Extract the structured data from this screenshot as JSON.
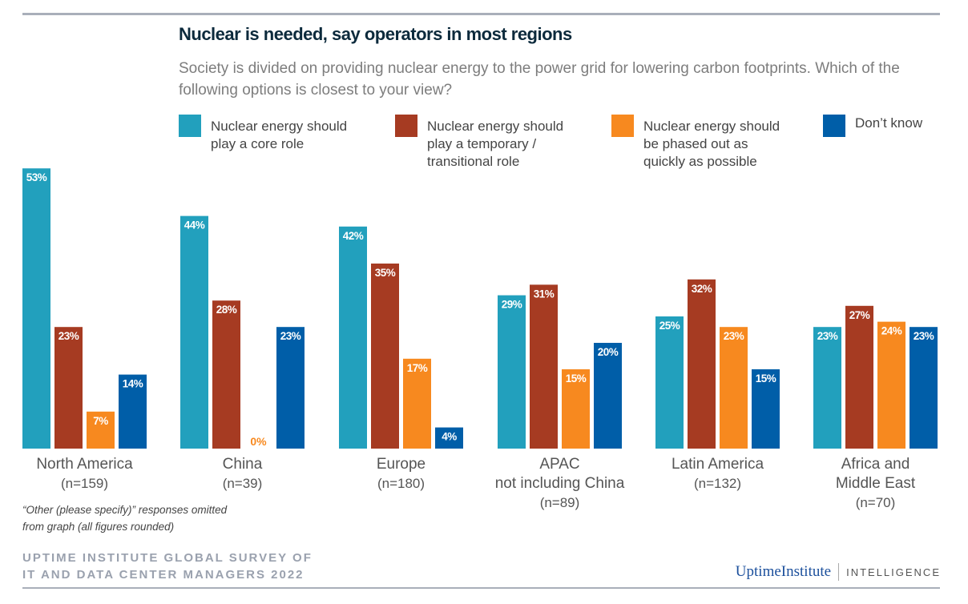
{
  "chart_data": {
    "type": "bar",
    "title": "Nuclear is needed, say operators in most regions",
    "subtitle": "Society is divided on providing nuclear energy to the power grid for lowering carbon footprints. Which of the following options is closest to your view?",
    "categories": [
      {
        "name": "North America",
        "n": "(n=159)"
      },
      {
        "name": "China",
        "n": "(n=39)"
      },
      {
        "name": "Europe",
        "n": "(n=180)"
      },
      {
        "name": "APAC\nnot including China",
        "n": "(n=89)"
      },
      {
        "name": "Latin America",
        "n": "(n=132)"
      },
      {
        "name": "Africa and\nMiddle East",
        "n": "(n=70)"
      }
    ],
    "series": [
      {
        "name": "Nuclear energy should play a core role",
        "color": "#22a0bd",
        "values": [
          53,
          44,
          42,
          29,
          25,
          23
        ]
      },
      {
        "name": "Nuclear energy should play a temporary / transitional role",
        "color": "#a63b22",
        "values": [
          23,
          28,
          35,
          31,
          32,
          27
        ]
      },
      {
        "name": "Nuclear energy should be phased out as quickly as possible",
        "color": "#f7891f",
        "values": [
          7,
          0,
          17,
          15,
          23,
          24
        ]
      },
      {
        "name": "Don’t know",
        "color": "#005ea8",
        "values": [
          14,
          23,
          4,
          20,
          15,
          23
        ]
      }
    ],
    "value_suffix": "%",
    "ylim": [
      0,
      53
    ],
    "grid": false,
    "legend_position": "top"
  },
  "legend": {
    "items": [
      "Nuclear energy should\nplay a core role",
      "Nuclear energy should\nplay a temporary /\ntransitional role",
      "Nuclear energy should\nbe phased out as\nquickly as possible",
      "Don’t know"
    ]
  },
  "note": "“Other (please specify)” responses omitted\nfrom graph (all figures rounded)",
  "source": "UPTIME INSTITUTE GLOBAL SURVEY OF\nIT AND DATA CENTER MANAGERS 2022",
  "logo": {
    "part1": "Uptime",
    "part2": "Institute",
    "part3": "INTELLIGENCE"
  }
}
